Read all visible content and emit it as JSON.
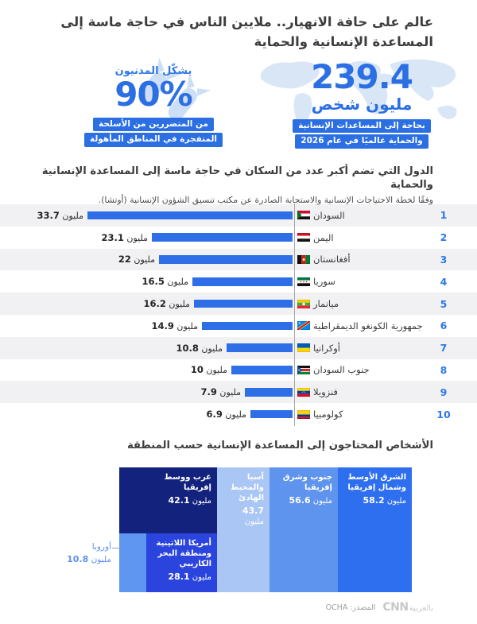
{
  "colors": {
    "accent_blue": "#2b6fe3",
    "bar_blue": "#2e6fe8",
    "rank_blue": "#2e7ae8",
    "stripe_gray": "#f1f1f3",
    "decor_light_blue": "#d9e6f6"
  },
  "header": {
    "title": "عالم على حافة الانهيار.. ملايين الناس في حاجة ماسة إلى المساعدة الإنسانية والحماية"
  },
  "stats": {
    "civilians": {
      "lead": "يشكّل المدنيون",
      "value": "90%",
      "note_lines": [
        "من المتضررين من الأسلحة",
        "المتفجرة في المناطق المأهولة"
      ]
    },
    "people_in_need": {
      "value": "239.4",
      "unit": "مليون شخص",
      "note_lines": [
        "بحاجة إلى المساعدات الإنسانية",
        "والحماية عالميًا في عام 2026"
      ]
    }
  },
  "ranking": {
    "title": "الدول التي تضم أكبر عدد من السكان في حاجة ماسة إلى المساعدة الإنسانية والحماية",
    "subtitle": "وفقًا لخطة الاحتياجات الإنسانية والاستجابة الصادرة عن مكتب تنسيق الشؤون الإنسانية (أوتشا).",
    "unit": "مليون",
    "max_value": 33.7,
    "rows": [
      {
        "rank": "1",
        "country": "السودان",
        "flag": "sudan",
        "value": 33.7,
        "label": "33.7"
      },
      {
        "rank": "2",
        "country": "اليمن",
        "flag": "yemen",
        "value": 23.1,
        "label": "23.1"
      },
      {
        "rank": "3",
        "country": "أفغانستان",
        "flag": "afghanistan",
        "value": 22,
        "label": "22"
      },
      {
        "rank": "4",
        "country": "سوريا",
        "flag": "syria",
        "value": 16.5,
        "label": "16.5"
      },
      {
        "rank": "5",
        "country": "ميانمار",
        "flag": "myanmar",
        "value": 16.2,
        "label": "16.2"
      },
      {
        "rank": "6",
        "country": "جمهورية الكونغو الديمقراطية",
        "flag": "drcongo",
        "value": 14.9,
        "label": "14.9"
      },
      {
        "rank": "7",
        "country": "أوكرانيا",
        "flag": "ukraine",
        "value": 10.8,
        "label": "10.8"
      },
      {
        "rank": "8",
        "country": "جنوب السودان",
        "flag": "southsudan",
        "value": 10,
        "label": "10"
      },
      {
        "rank": "9",
        "country": "فنزويلا",
        "flag": "venezuela",
        "value": 7.9,
        "label": "7.9"
      },
      {
        "rank": "10",
        "country": "كولومبيا",
        "flag": "colombia",
        "value": 6.9,
        "label": "6.9"
      }
    ]
  },
  "regions": {
    "title": "الأشخاص المحتاجون إلى المساعدة الإنسانية حسب المنطقة",
    "unit": "مليون",
    "cells": [
      {
        "id": "mena",
        "name": "الشرق الأوسط وشمال إفريقيا",
        "value": "58.2",
        "color": "#2e6ff0"
      },
      {
        "id": "sea",
        "name": "جنوب وشرق إفريقيا",
        "value": "56.6",
        "color": "#5e93ee"
      },
      {
        "id": "asia",
        "name": "آسيا والمحيط الهادئ",
        "value": "43.7",
        "color": "#aac6f5"
      },
      {
        "id": "wca",
        "name": "غرب ووسط إفريقيا",
        "value": "42.1",
        "color": "#13227c"
      },
      {
        "id": "latam",
        "name": "أمريكا اللاتينية ومنطقة البحر الكاريبي",
        "value": "28.1",
        "color": "#2b44dd"
      },
      {
        "id": "europe",
        "name": "أوروبا",
        "value": "10.8",
        "color": "#5e96f2",
        "label_outside": true
      }
    ]
  },
  "footer": {
    "source_label": "المصدر: OCHA",
    "logo_cnn": "CNN",
    "logo_arabic": "بالعربية"
  },
  "chart_data": [
    {
      "type": "bar",
      "orientation": "horizontal",
      "title": "الدول التي تضم أكبر عدد من السكان في حاجة ماسة إلى المساعدة الإنسانية والحماية",
      "subtitle": "وفقًا لخطة الاحتياجات الإنسانية والاستجابة الصادرة عن مكتب تنسيق الشؤون الإنسانية (أوتشا).",
      "unit": "مليون",
      "categories": [
        "السودان",
        "اليمن",
        "أفغانستان",
        "سوريا",
        "ميانمار",
        "جمهورية الكونغو الديمقراطية",
        "أوكرانيا",
        "جنوب السودان",
        "فنزويلا",
        "كولومبيا"
      ],
      "values": [
        33.7,
        23.1,
        22,
        16.5,
        16.2,
        14.9,
        10.8,
        10,
        7.9,
        6.9
      ],
      "xlim": [
        0,
        33.7
      ],
      "grid": false,
      "legend": false
    },
    {
      "type": "treemap",
      "title": "الأشخاص المحتاجون إلى المساعدة الإنسانية حسب المنطقة",
      "unit": "مليون",
      "categories": [
        "الشرق الأوسط وشمال إفريقيا",
        "جنوب وشرق إفريقيا",
        "آسيا والمحيط الهادئ",
        "غرب ووسط إفريقيا",
        "أمريكا اللاتينية ومنطقة البحر الكاريبي",
        "أوروبا"
      ],
      "values": [
        58.2,
        56.6,
        43.7,
        42.1,
        28.1,
        10.8
      ]
    },
    {
      "type": "stat",
      "title": "يشكّل المدنيون",
      "values": [
        90
      ],
      "unit": "%",
      "note": "من المتضررين من الأسلحة المتفجرة في المناطق المأهولة"
    },
    {
      "type": "stat",
      "title": "مليون شخص",
      "values": [
        239.4
      ],
      "unit": "مليون",
      "note": "بحاجة إلى المساعدات الإنسانية والحماية عالميًا في عام 2026"
    }
  ]
}
